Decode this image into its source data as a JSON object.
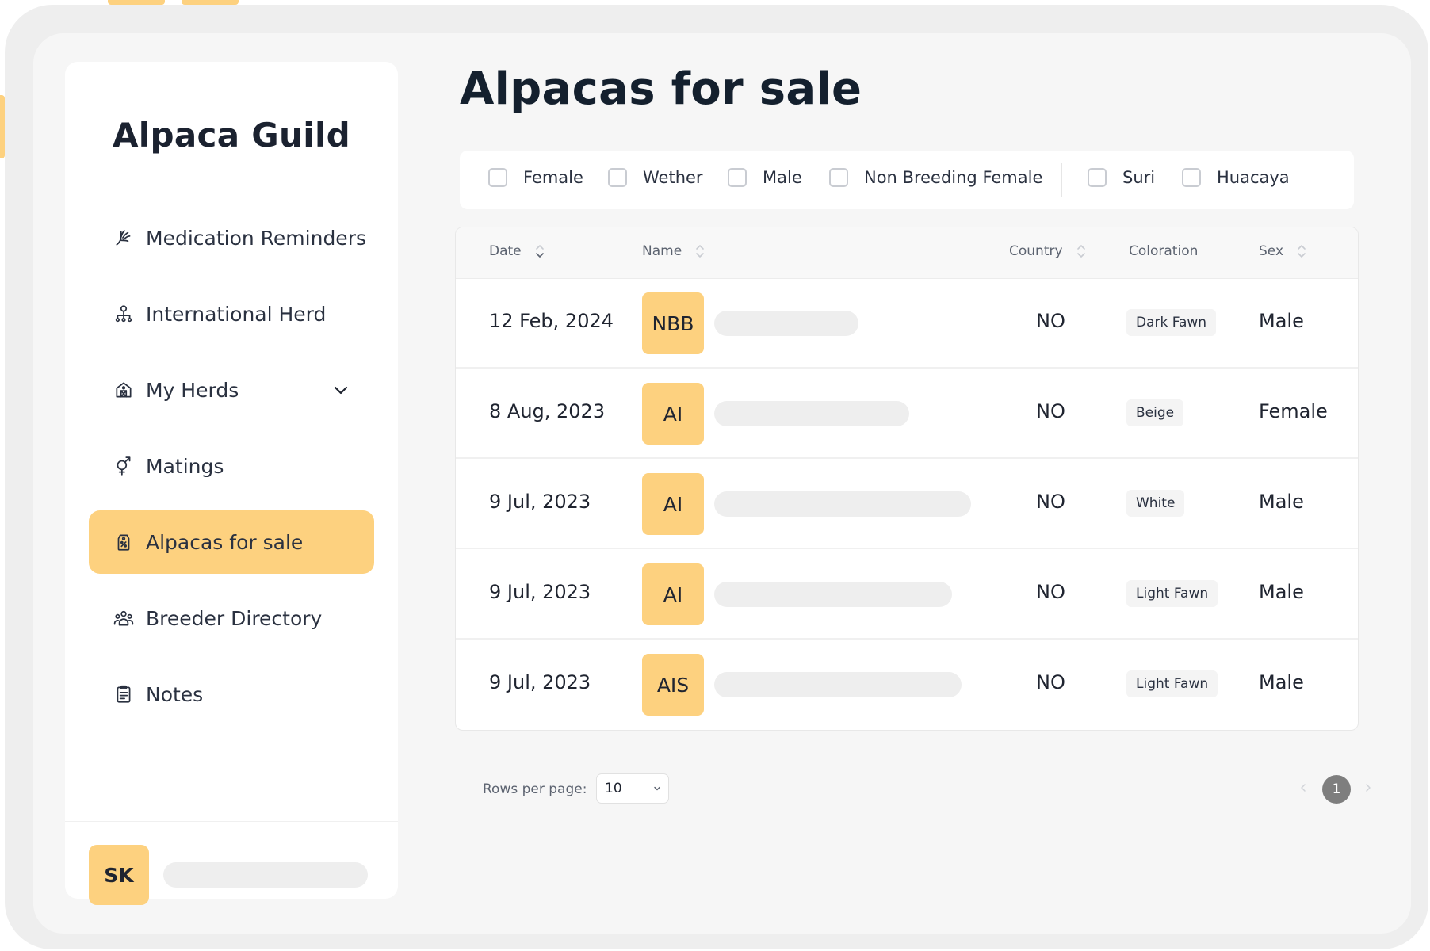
{
  "app": {
    "brand": "Alpaca Guild",
    "accent_color": "#fdd17f"
  },
  "sidebar": {
    "items": [
      {
        "label": "Medication Reminders",
        "icon": "hand-icon"
      },
      {
        "label": "International Herd",
        "icon": "network-icon"
      },
      {
        "label": "My Herds",
        "icon": "barn-icon"
      },
      {
        "label": "Matings",
        "icon": "gender-icon"
      },
      {
        "label": "Alpacas for sale",
        "icon": "tag-icon",
        "active": true
      },
      {
        "label": "Breeder Directory",
        "icon": "people-icon"
      },
      {
        "label": "Notes",
        "icon": "clipboard-icon"
      }
    ],
    "user": {
      "initials": "SK"
    }
  },
  "page": {
    "title": "Alpacas for sale"
  },
  "filters": {
    "items": [
      {
        "label": "Female",
        "checked": false
      },
      {
        "label": "Wether",
        "checked": false
      },
      {
        "label": "Male",
        "checked": false
      },
      {
        "label": "Non Breeding Female",
        "checked": false
      },
      {
        "label": "Suri",
        "checked": false
      },
      {
        "label": "Huacaya",
        "checked": false
      }
    ]
  },
  "table": {
    "columns": {
      "date": "Date",
      "name": "Name",
      "country": "Country",
      "coloration": "Coloration",
      "sex": "Sex"
    },
    "rows": [
      {
        "date": "12 Feb, 2024",
        "badge": "NBB",
        "country": "NO",
        "coloration": "Dark Fawn",
        "sex": "Male"
      },
      {
        "date": "8 Aug, 2023",
        "badge": "AI",
        "country": "NO",
        "coloration": "Beige",
        "sex": "Female"
      },
      {
        "date": "9 Jul, 2023",
        "badge": "AI",
        "country": "NO",
        "coloration": "White",
        "sex": "Male"
      },
      {
        "date": "9 Jul, 2023",
        "badge": "AI",
        "country": "NO",
        "coloration": "Light Fawn",
        "sex": "Male"
      },
      {
        "date": "9 Jul, 2023",
        "badge": "AIS",
        "country": "NO",
        "coloration": "Light Fawn",
        "sex": "Male"
      }
    ]
  },
  "pagination": {
    "rows_per_page_label": "Rows per page:",
    "rows_per_page_value": "10",
    "current_page": "1"
  }
}
